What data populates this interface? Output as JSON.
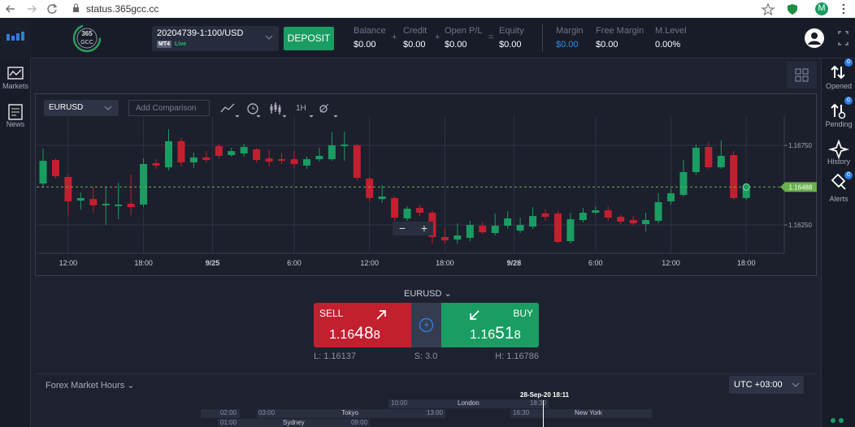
{
  "browser": {
    "url": "status.365gcc.cc",
    "profile": "M"
  },
  "header": {
    "logo": [
      "365",
      "GCC"
    ],
    "account": "20204739-1:100/USD",
    "platform": "MT4",
    "status": "Live",
    "deposit": "DEPOSIT",
    "stats": [
      {
        "label": "Balance",
        "value": "$0.00"
      },
      {
        "label": "Credit",
        "value": "$0.00"
      },
      {
        "label": "Open P/L",
        "value": "$0.00"
      },
      {
        "label": "Equity",
        "value": "$0.00"
      },
      {
        "label": "Margin",
        "value": "$0.00"
      },
      {
        "label": "Free Margin",
        "value": "$0.00"
      },
      {
        "label": "M.Level",
        "value": "0.00%"
      }
    ],
    "operators": [
      "+",
      "+",
      "="
    ]
  },
  "left_nav": [
    "Markets",
    "News"
  ],
  "right_nav": [
    {
      "label": "Opened",
      "badge": "0"
    },
    {
      "label": "Pending",
      "badge": "0"
    },
    {
      "label": "History"
    },
    {
      "label": "Alerts",
      "badge": "0"
    }
  ],
  "toolbar": {
    "symbol": "EURUSD",
    "comparison": "Add Comparison",
    "timeframe": "1H"
  },
  "chart": {
    "type": "candlestick",
    "up_color": "#1a9d62",
    "down_color": "#c3202f",
    "ylim": [
      1.16072,
      1.16888
    ],
    "yticks": [
      {
        "value": 1.1625,
        "label": "1.16250"
      },
      {
        "value": 1.1675,
        "label": "1.16750"
      }
    ],
    "xticks": [
      {
        "value": 2,
        "label": "12:00"
      },
      {
        "value": 8,
        "label": "18:00"
      },
      {
        "value": 13.5,
        "label": "9/25"
      },
      {
        "value": 20,
        "label": "6:00"
      },
      {
        "value": 26,
        "label": "12:00"
      },
      {
        "value": 32,
        "label": "18:00"
      },
      {
        "value": 37.5,
        "label": "9/28"
      },
      {
        "value": 44,
        "label": "6:00"
      },
      {
        "value": 50,
        "label": "12:00"
      },
      {
        "value": 56,
        "label": "18:00"
      }
    ],
    "last_price": {
      "value": 1.16488,
      "label": "1.16488"
    },
    "zoom": [
      "−",
      "+"
    ],
    "candles": [
      {
        "open": 1.1651,
        "high": 1.1673,
        "low": 1.1649,
        "close": 1.16653
      },
      {
        "open": 1.16658,
        "high": 1.16668,
        "low": 1.16541,
        "close": 1.16556
      },
      {
        "open": 1.16551,
        "high": 1.16566,
        "low": 1.16311,
        "close": 1.16398
      },
      {
        "open": 1.16403,
        "high": 1.16454,
        "low": 1.16347,
        "close": 1.16419
      },
      {
        "open": 1.16413,
        "high": 1.1649,
        "low": 1.16327,
        "close": 1.16373
      },
      {
        "open": 1.16373,
        "high": 1.1649,
        "low": 1.1625,
        "close": 1.16383
      },
      {
        "open": 1.16368,
        "high": 1.16515,
        "low": 1.16286,
        "close": 1.16378
      },
      {
        "open": 1.16383,
        "high": 1.16566,
        "low": 1.16311,
        "close": 1.16362
      },
      {
        "open": 1.16378,
        "high": 1.16668,
        "low": 1.16362,
        "close": 1.16633
      },
      {
        "open": 1.16638,
        "high": 1.16663,
        "low": 1.16602,
        "close": 1.16623
      },
      {
        "open": 1.16612,
        "high": 1.16852,
        "low": 1.16592,
        "close": 1.16776
      },
      {
        "open": 1.16776,
        "high": 1.16796,
        "low": 1.16617,
        "close": 1.16643
      },
      {
        "open": 1.16643,
        "high": 1.16704,
        "low": 1.16607,
        "close": 1.16674
      },
      {
        "open": 1.16674,
        "high": 1.16714,
        "low": 1.16643,
        "close": 1.16658
      },
      {
        "open": 1.16745,
        "high": 1.1676,
        "low": 1.16668,
        "close": 1.16684
      },
      {
        "open": 1.16689,
        "high": 1.16735,
        "low": 1.16679,
        "close": 1.16714
      },
      {
        "open": 1.16699,
        "high": 1.1676,
        "low": 1.16679,
        "close": 1.1674
      },
      {
        "open": 1.16725,
        "high": 1.16735,
        "low": 1.16643,
        "close": 1.16658
      },
      {
        "open": 1.16668,
        "high": 1.16725,
        "low": 1.16617,
        "close": 1.16648
      },
      {
        "open": 1.16663,
        "high": 1.16704,
        "low": 1.16633,
        "close": 1.16653
      },
      {
        "open": 1.16663,
        "high": 1.16719,
        "low": 1.16607,
        "close": 1.16633
      },
      {
        "open": 1.16623,
        "high": 1.16679,
        "low": 1.16602,
        "close": 1.16663
      },
      {
        "open": 1.16663,
        "high": 1.16735,
        "low": 1.16648,
        "close": 1.16684
      },
      {
        "open": 1.16663,
        "high": 1.16832,
        "low": 1.16653,
        "close": 1.1675
      },
      {
        "open": 1.16745,
        "high": 1.16837,
        "low": 1.16653,
        "close": 1.16755
      },
      {
        "open": 1.1675,
        "high": 1.1676,
        "low": 1.16531,
        "close": 1.16546
      },
      {
        "open": 1.16541,
        "high": 1.16551,
        "low": 1.16398,
        "close": 1.16419
      },
      {
        "open": 1.16413,
        "high": 1.165,
        "low": 1.16388,
        "close": 1.16429
      },
      {
        "open": 1.16419,
        "high": 1.16429,
        "low": 1.16276,
        "close": 1.16296
      },
      {
        "open": 1.16291,
        "high": 1.16368,
        "low": 1.16276,
        "close": 1.16352
      },
      {
        "open": 1.16357,
        "high": 1.16378,
        "low": 1.16306,
        "close": 1.16327
      },
      {
        "open": 1.16327,
        "high": 1.16342,
        "low": 1.16133,
        "close": 1.16174
      },
      {
        "open": 1.16174,
        "high": 1.16235,
        "low": 1.16133,
        "close": 1.16153
      },
      {
        "open": 1.16158,
        "high": 1.1626,
        "low": 1.16133,
        "close": 1.16184
      },
      {
        "open": 1.16169,
        "high": 1.16276,
        "low": 1.16148,
        "close": 1.1625
      },
      {
        "open": 1.16245,
        "high": 1.16271,
        "low": 1.16194,
        "close": 1.16204
      },
      {
        "open": 1.16199,
        "high": 1.16322,
        "low": 1.16184,
        "close": 1.16245
      },
      {
        "open": 1.16245,
        "high": 1.16337,
        "low": 1.16225,
        "close": 1.16291
      },
      {
        "open": 1.16215,
        "high": 1.16296,
        "low": 1.16199,
        "close": 1.1625
      },
      {
        "open": 1.1624,
        "high": 1.16362,
        "low": 1.16225,
        "close": 1.16306
      },
      {
        "open": 1.16322,
        "high": 1.16347,
        "low": 1.16276,
        "close": 1.16301
      },
      {
        "open": 1.16322,
        "high": 1.16342,
        "low": 1.16133,
        "close": 1.16143
      },
      {
        "open": 1.16148,
        "high": 1.16327,
        "low": 1.16133,
        "close": 1.16286
      },
      {
        "open": 1.16281,
        "high": 1.16357,
        "low": 1.16266,
        "close": 1.16327
      },
      {
        "open": 1.16327,
        "high": 1.16368,
        "low": 1.16317,
        "close": 1.16342
      },
      {
        "open": 1.16342,
        "high": 1.16368,
        "low": 1.16276,
        "close": 1.16296
      },
      {
        "open": 1.16301,
        "high": 1.16317,
        "low": 1.16255,
        "close": 1.16271
      },
      {
        "open": 1.16281,
        "high": 1.16306,
        "low": 1.16245,
        "close": 1.1626
      },
      {
        "open": 1.16255,
        "high": 1.16327,
        "low": 1.16209,
        "close": 1.16281
      },
      {
        "open": 1.16276,
        "high": 1.16449,
        "low": 1.1626,
        "close": 1.16393
      },
      {
        "open": 1.16398,
        "high": 1.1648,
        "low": 1.16378,
        "close": 1.16449
      },
      {
        "open": 1.16439,
        "high": 1.16658,
        "low": 1.16429,
        "close": 1.16582
      },
      {
        "open": 1.16582,
        "high": 1.16755,
        "low": 1.16566,
        "close": 1.16735
      },
      {
        "open": 1.1674,
        "high": 1.1677,
        "low": 1.16602,
        "close": 1.16612
      },
      {
        "open": 1.16612,
        "high": 1.16781,
        "low": 1.16602,
        "close": 1.16684
      },
      {
        "open": 1.16689,
        "high": 1.16714,
        "low": 1.16408,
        "close": 1.16419
      },
      {
        "open": 1.16419,
        "high": 1.1651,
        "low": 1.16408,
        "close": 1.16488
      }
    ]
  },
  "trade": {
    "symbol": "EURUSD",
    "sell": {
      "label": "SELL",
      "price": [
        "1.16",
        "48",
        "8"
      ]
    },
    "buy": {
      "label": "BUY",
      "price": [
        "1.16",
        "51",
        "8"
      ]
    },
    "low": "L: 1.16137",
    "spread": "S: 3.0",
    "high": "H: 1.16786"
  },
  "market_hours": {
    "title": "Forex Market Hours",
    "timezone": "UTC +03:00",
    "now": "28-Sep-20 18:11",
    "sessions": [
      {
        "end": "02:00"
      },
      {
        "name": "London",
        "start": "10:00",
        "end": "18:30"
      },
      {
        "name": "Tokyo",
        "start": "03:00",
        "end": "13:00"
      },
      {
        "name": "New York",
        "start": "16:30"
      },
      {
        "name": "Sydney",
        "start": "01:00",
        "end": "09:00"
      }
    ]
  }
}
